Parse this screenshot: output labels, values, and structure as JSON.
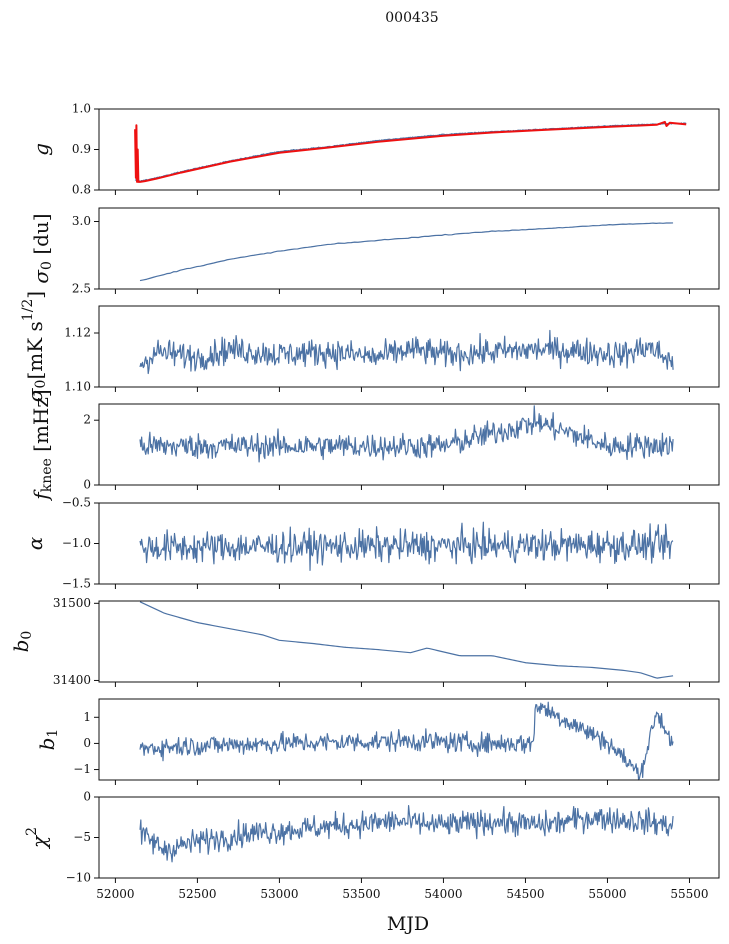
{
  "figure": {
    "title": "000435",
    "xlabel": "MJD"
  },
  "colors": {
    "series": "#4c72a4",
    "red": "#ee1111",
    "axis": "#111111"
  },
  "chart_data": [
    {
      "type": "line",
      "ylabel": "g",
      "ylim": [
        0.8,
        1.0
      ],
      "yticks": [
        0.8,
        0.9,
        1.0
      ],
      "ytick_labels": [
        "0.8",
        "0.9",
        "1.0"
      ],
      "xlim": [
        51900,
        55680
      ],
      "x_start": 52120,
      "x_end": 55480,
      "series": [
        {
          "name": "g",
          "color": "#4c72a4",
          "x": [
            52120,
            52150,
            52180,
            52250,
            52400,
            52700,
            53000,
            53300,
            53600,
            54000,
            54300,
            54600,
            55000,
            55300,
            55480
          ],
          "values": [
            0.825,
            0.822,
            0.824,
            0.83,
            0.845,
            0.872,
            0.895,
            0.907,
            0.922,
            0.937,
            0.944,
            0.95,
            0.958,
            0.963,
            0.965
          ]
        },
        {
          "name": "g (red)",
          "color": "#ee1111",
          "x": [
            52120,
            52125,
            52128,
            52132,
            52136,
            52140,
            52150,
            52180,
            52250,
            52400,
            52700,
            53000,
            53300,
            53600,
            54000,
            54300,
            54600,
            55000,
            55300,
            55350,
            55360,
            55380,
            55480
          ],
          "values": [
            0.95,
            0.83,
            0.96,
            0.82,
            0.9,
            0.82,
            0.82,
            0.822,
            0.828,
            0.843,
            0.87,
            0.892,
            0.905,
            0.919,
            0.934,
            0.942,
            0.948,
            0.956,
            0.961,
            0.968,
            0.958,
            0.966,
            0.962
          ]
        }
      ]
    },
    {
      "type": "line",
      "ylabel": "σ0 [du]",
      "ylim": [
        2.5,
        3.1
      ],
      "yticks": [
        2.5,
        3.0
      ],
      "ytick_labels": [
        "2.5",
        "3.0"
      ],
      "xlim": [
        51900,
        55680
      ],
      "x_start": 52150,
      "x_end": 55400,
      "series": [
        {
          "name": "sigma0",
          "color": "#4c72a4",
          "x": [
            52150,
            52400,
            52700,
            53000,
            53300,
            53600,
            53900,
            54200,
            54500,
            54800,
            55100,
            55400
          ],
          "values": [
            2.56,
            2.64,
            2.72,
            2.78,
            2.83,
            2.86,
            2.89,
            2.92,
            2.94,
            2.96,
            2.98,
            2.99
          ]
        }
      ]
    },
    {
      "type": "line",
      "ylabel": "σ0[mK s^1/2]",
      "ylim": [
        1.1,
        1.13
      ],
      "yticks": [
        1.1,
        1.12
      ],
      "ytick_labels": [
        "1.10",
        "1.12"
      ],
      "xlim": [
        51900,
        55680
      ],
      "x_start": 52150,
      "x_end": 55400,
      "series": [
        {
          "name": "sigma0_mK",
          "color": "#4c72a4",
          "x": [
            52150,
            52250,
            52500,
            52700,
            53000,
            53300,
            53600,
            53800,
            54000,
            54300,
            54600,
            54900,
            55100,
            55250,
            55400
          ],
          "values": [
            1.108,
            1.113,
            1.111,
            1.114,
            1.112,
            1.113,
            1.111,
            1.114,
            1.112,
            1.113,
            1.114,
            1.113,
            1.112,
            1.115,
            1.109
          ]
        }
      ]
    },
    {
      "type": "line",
      "ylabel": "f_knee [mHz]",
      "ylim": [
        0,
        2.5
      ],
      "yticks": [
        0,
        2
      ],
      "ytick_labels": [
        "0",
        "2"
      ],
      "xlim": [
        51900,
        55680
      ],
      "x_start": 52150,
      "x_end": 55400,
      "series": [
        {
          "name": "fknee",
          "color": "#4c72a4",
          "x": [
            52150,
            53000,
            54000,
            54570,
            55000,
            55400
          ],
          "values": [
            1.2,
            1.2,
            1.2,
            1.95,
            1.2,
            1.25
          ]
        }
      ]
    },
    {
      "type": "line",
      "ylabel": "α",
      "ylim": [
        -1.5,
        -0.5
      ],
      "yticks": [
        -1.5,
        -1.0,
        -0.5
      ],
      "ytick_labels": [
        "−1.5",
        "−1.0",
        "−0.5"
      ],
      "xlim": [
        51900,
        55680
      ],
      "x_start": 52150,
      "x_end": 55400,
      "series": [
        {
          "name": "alpha",
          "color": "#4c72a4",
          "x": [
            52150,
            53000,
            54000,
            55000,
            55400
          ],
          "values": [
            -1.05,
            -1.04,
            -1.03,
            -1.02,
            -1.02
          ]
        }
      ]
    },
    {
      "type": "line",
      "ylabel": "b0",
      "ylim": [
        31398,
        31503
      ],
      "yticks": [
        31400,
        31500
      ],
      "ytick_labels": [
        "31400",
        "31500"
      ],
      "xlim": [
        51900,
        55680
      ],
      "x_start": 52150,
      "x_end": 55400,
      "series": [
        {
          "name": "b0",
          "color": "#4c72a4",
          "x": [
            52150,
            52300,
            52500,
            52700,
            52900,
            53000,
            53200,
            53400,
            53600,
            53800,
            53900,
            54100,
            54300,
            54500,
            54700,
            54900,
            55100,
            55200,
            55300,
            55400
          ],
          "values": [
            31502,
            31487,
            31475,
            31467,
            31459,
            31452,
            31448,
            31443,
            31440,
            31436,
            31442,
            31432,
            31432,
            31423,
            31419,
            31417,
            31413,
            31410,
            31403,
            31406
          ]
        }
      ]
    },
    {
      "type": "line",
      "ylabel": "b1",
      "ylim": [
        -1.4,
        1.7
      ],
      "yticks": [
        -1,
        0,
        1
      ],
      "ytick_labels": [
        "−1",
        "0",
        "1"
      ],
      "xlim": [
        51900,
        55680
      ],
      "x_start": 52150,
      "x_end": 55400,
      "series": [
        {
          "name": "b1",
          "color": "#4c72a4",
          "x": [
            52150,
            52400,
            52700,
            53000,
            53400,
            53800,
            54200,
            54550,
            54560,
            55000,
            55200,
            55300,
            55400
          ],
          "values": [
            -0.2,
            -0.1,
            -0.05,
            0.0,
            0.05,
            0.1,
            0.0,
            0.0,
            1.5,
            0.05,
            -1.2,
            1.2,
            0.0
          ]
        }
      ]
    },
    {
      "type": "line",
      "ylabel": "χ2",
      "ylim": [
        -10,
        0
      ],
      "yticks": [
        -10,
        -5,
        0
      ],
      "ytick_labels": [
        "−10",
        "−5",
        "0"
      ],
      "xlim": [
        51900,
        55680
      ],
      "x_start": 52150,
      "x_end": 55400,
      "xticks": [
        52000,
        52500,
        53000,
        53500,
        54000,
        54500,
        55000,
        55500
      ],
      "xtick_labels": [
        "52000",
        "52500",
        "53000",
        "53500",
        "54000",
        "54500",
        "55000",
        "55500"
      ],
      "series": [
        {
          "name": "chi2",
          "color": "#4c72a4",
          "x": [
            52150,
            52300,
            52500,
            52800,
            53100,
            53400,
            53700,
            54000,
            54300,
            54600,
            54900,
            55200,
            55400
          ],
          "values": [
            -4.5,
            -6.5,
            -5.5,
            -4.5,
            -4.0,
            -3.5,
            -3.0,
            -3.5,
            -3.0,
            -3.5,
            -2.5,
            -3.0,
            -3.5
          ]
        }
      ]
    }
  ]
}
